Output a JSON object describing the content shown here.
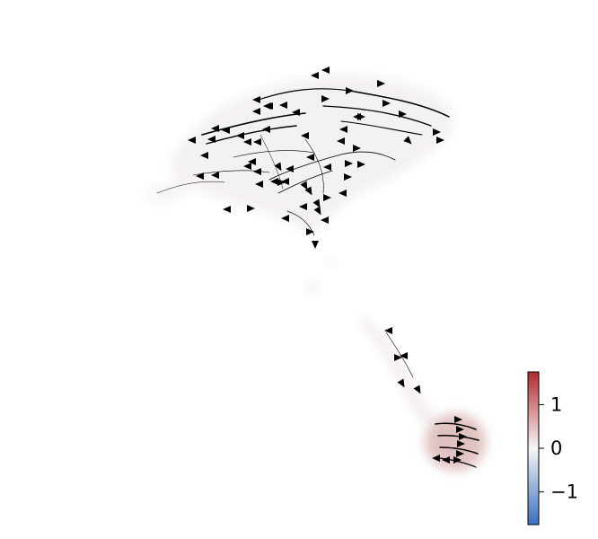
{
  "chart_data": {
    "type": "scatter",
    "title": "",
    "xlabel": "",
    "ylabel": "",
    "axes_visible": false,
    "grid": false,
    "legend": "none",
    "overlay": "velocity-streamlines-with-arrowheads",
    "colormap": {
      "name": "diverging-blue-white-red",
      "low_color": "#3a6fbf",
      "mid_color": "#f7f7f7",
      "high_color": "#b2292e",
      "range": [
        -1.75,
        1.75
      ],
      "ticks": [
        1,
        0,
        -1
      ],
      "tick_labels": [
        "1",
        "0",
        "−1"
      ],
      "placement": "bottom-right"
    },
    "arrow_color": "#000000"
  }
}
